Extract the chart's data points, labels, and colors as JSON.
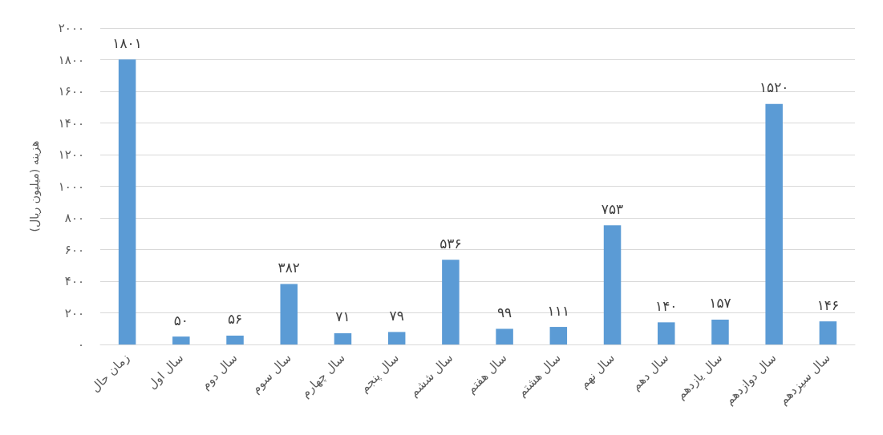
{
  "chart_data": {
    "type": "bar",
    "ylabel": "هزینه (میلیون ریال)",
    "categories": [
      "زمان حال",
      "سال اول",
      "سال دوم",
      "سال سوم",
      "سال چهارم",
      "سال پنجم",
      "سال ششم",
      "سال هفتم",
      "سال هشتم",
      "سال نهم",
      "سال دهم",
      "سال یازدهم",
      "سال دوازدهم",
      "سال سیزدهم"
    ],
    "values": [
      1801,
      50,
      56,
      382,
      71,
      79,
      536,
      99,
      111,
      753,
      140,
      157,
      1520,
      146
    ],
    "value_labels": [
      "۱۸۰۱",
      "۵۰",
      "۵۶",
      "۳۸۲",
      "۷۱",
      "۷۹",
      "۵۳۶",
      "۹۹",
      "۱۱۱",
      "۷۵۳",
      "۱۴۰",
      "۱۵۷",
      "۱۵۲۰",
      "۱۴۶"
    ],
    "color": "#5b9bd5",
    "ylim": [
      0,
      2000
    ],
    "yticks": [
      {
        "value": 0,
        "label": "۰"
      },
      {
        "value": 200,
        "label": "۲۰۰"
      },
      {
        "value": 400,
        "label": "۴۰۰"
      },
      {
        "value": 600,
        "label": "۶۰۰"
      },
      {
        "value": 800,
        "label": "۸۰۰"
      },
      {
        "value": 1000,
        "label": "۱۰۰۰"
      },
      {
        "value": 1200,
        "label": "۱۲۰۰"
      },
      {
        "value": 1400,
        "label": "۱۴۰۰"
      },
      {
        "value": 1600,
        "label": "۱۶۰۰"
      },
      {
        "value": 1800,
        "label": "۱۸۰۰"
      },
      {
        "value": 2000,
        "label": "۲۰۰۰"
      }
    ],
    "grid": "y"
  }
}
